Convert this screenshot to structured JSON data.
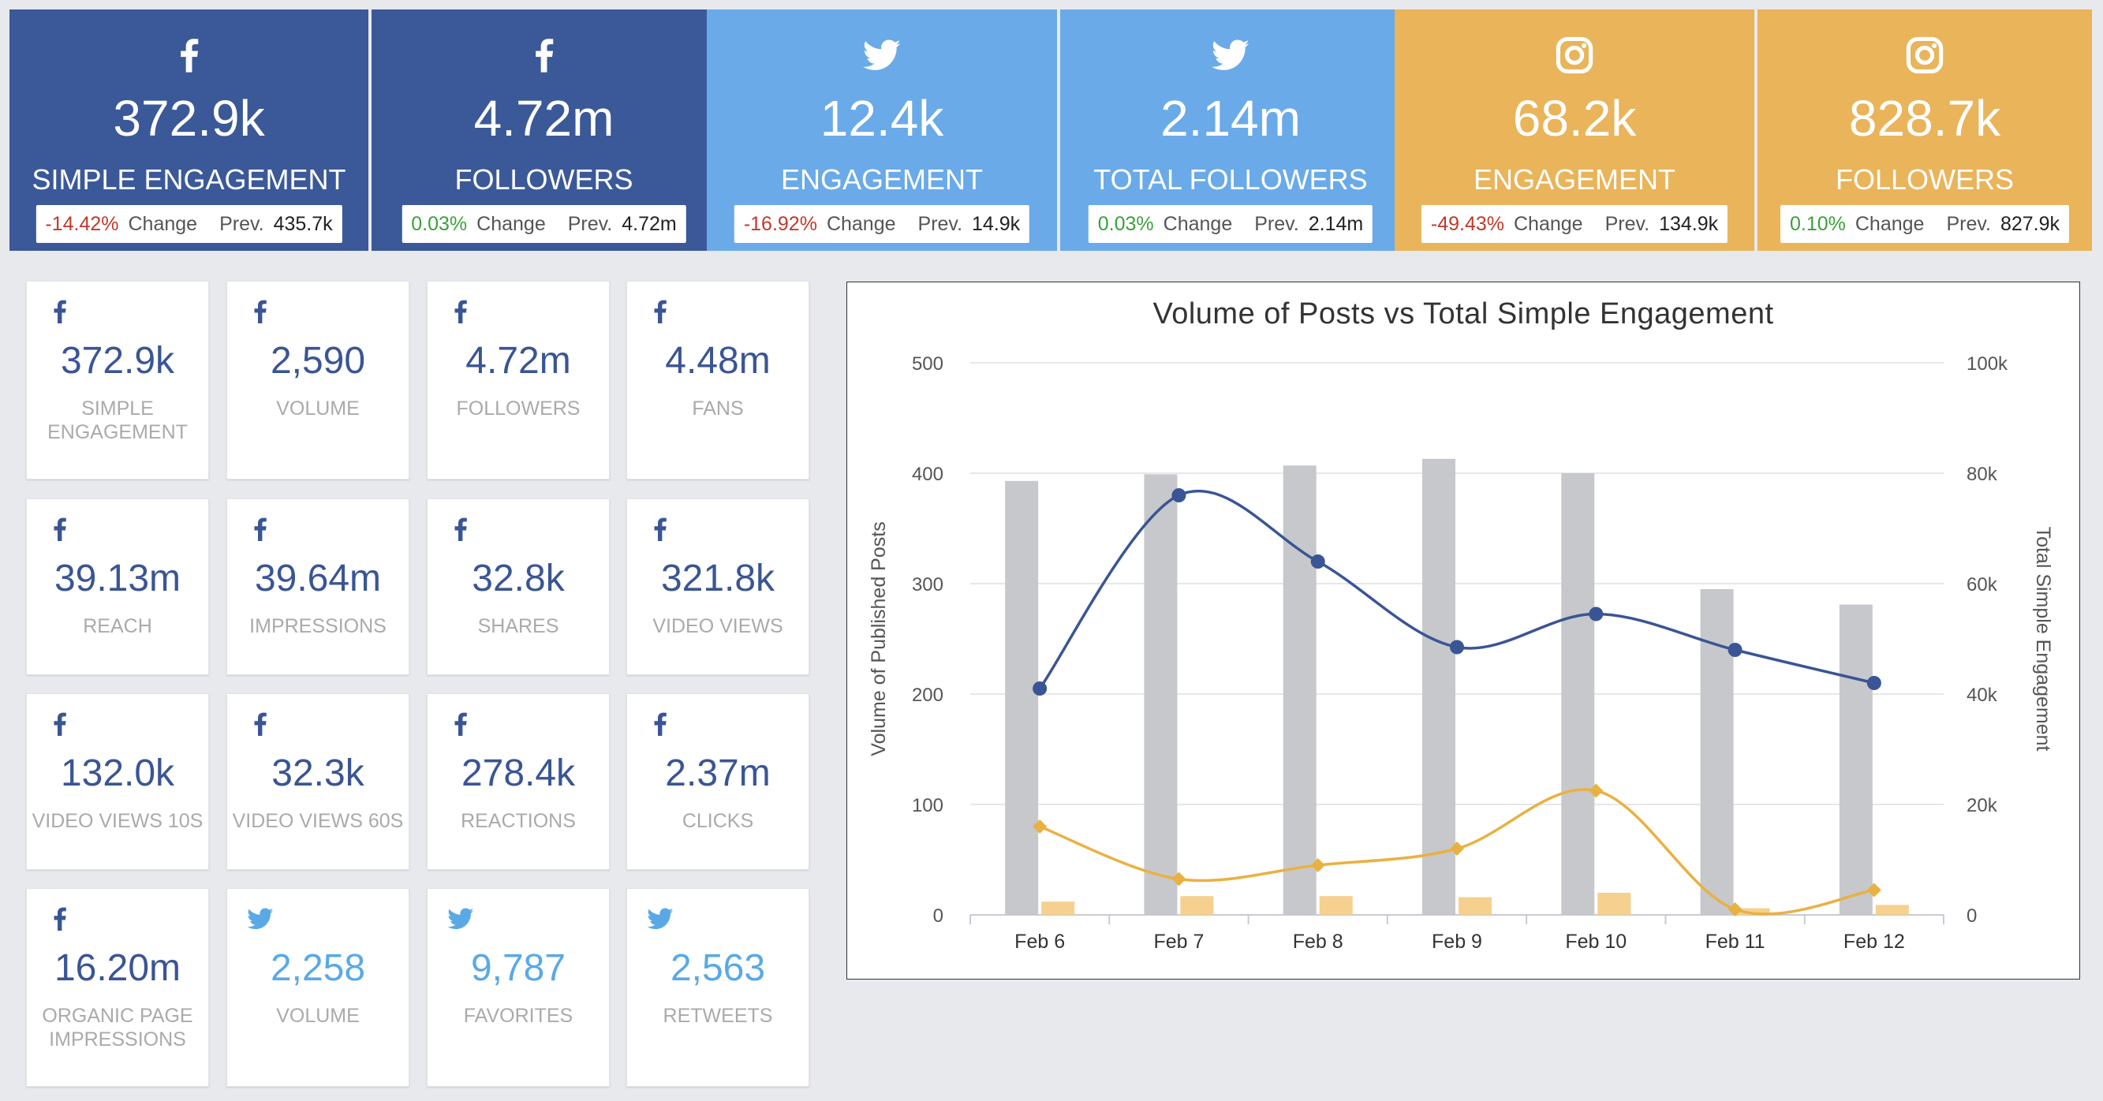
{
  "colors": {
    "facebook": "#3b5998",
    "twitter": "#6aaae8",
    "instagram": "#e9b45a",
    "negative": "#c0392b",
    "positive": "#3aa13a",
    "bar_primary": "#c7c8cc",
    "bar_secondary": "#f5d08f",
    "line_primary": "#3a5595",
    "line_secondary": "#e9b142"
  },
  "summary_cards": [
    {
      "icon": "facebook-icon",
      "value": "372.9k",
      "label": "SIMPLE ENGAGEMENT",
      "change": "-14.42%",
      "change_label": "Change",
      "prev_label": "Prev.",
      "prev": "435.7k"
    },
    {
      "icon": "facebook-icon",
      "value": "4.72m",
      "label": "FOLLOWERS",
      "change": "0.03%",
      "change_label": "Change",
      "prev_label": "Prev.",
      "prev": "4.72m"
    },
    {
      "icon": "twitter-icon",
      "value": "12.4k",
      "label": "ENGAGEMENT",
      "change": "-16.92%",
      "change_label": "Change",
      "prev_label": "Prev.",
      "prev": "14.9k"
    },
    {
      "icon": "twitter-icon",
      "value": "2.14m",
      "label": "TOTAL FOLLOWERS",
      "change": "0.03%",
      "change_label": "Change",
      "prev_label": "Prev.",
      "prev": "2.14m"
    },
    {
      "icon": "instagram-icon",
      "value": "68.2k",
      "label": "ENGAGEMENT",
      "change": "-49.43%",
      "change_label": "Change",
      "prev_label": "Prev.",
      "prev": "134.9k"
    },
    {
      "icon": "instagram-icon",
      "value": "828.7k",
      "label": "FOLLOWERS",
      "change": "0.10%",
      "change_label": "Change",
      "prev_label": "Prev.",
      "prev": "827.9k"
    }
  ],
  "metric_tiles": [
    {
      "icon": "facebook-icon",
      "value": "372.9k",
      "label": "SIMPLE ENGAGEMENT"
    },
    {
      "icon": "facebook-icon",
      "value": "2,590",
      "label": "VOLUME"
    },
    {
      "icon": "facebook-icon",
      "value": "4.72m",
      "label": "FOLLOWERS"
    },
    {
      "icon": "facebook-icon",
      "value": "4.48m",
      "label": "FANS"
    },
    {
      "icon": "facebook-icon",
      "value": "39.13m",
      "label": "REACH"
    },
    {
      "icon": "facebook-icon",
      "value": "39.64m",
      "label": "IMPRESSIONS"
    },
    {
      "icon": "facebook-icon",
      "value": "32.8k",
      "label": "SHARES"
    },
    {
      "icon": "facebook-icon",
      "value": "321.8k",
      "label": "VIDEO VIEWS"
    },
    {
      "icon": "facebook-icon",
      "value": "132.0k",
      "label": "VIDEO VIEWS 10S"
    },
    {
      "icon": "facebook-icon",
      "value": "32.3k",
      "label": "VIDEO VIEWS 60S"
    },
    {
      "icon": "facebook-icon",
      "value": "278.4k",
      "label": "REACTIONS"
    },
    {
      "icon": "facebook-icon",
      "value": "2.37m",
      "label": "CLICKS"
    },
    {
      "icon": "facebook-icon",
      "value": "16.20m",
      "label": "ORGANIC PAGE IMPRESSIONS"
    },
    {
      "icon": "twitter-icon",
      "value": "2,258",
      "label": "VOLUME"
    },
    {
      "icon": "twitter-icon",
      "value": "9,787",
      "label": "FAVORITES"
    },
    {
      "icon": "twitter-icon",
      "value": "2,563",
      "label": "RETWEETS"
    }
  ],
  "chart_data": {
    "type": "bar",
    "title": "Volume of Posts vs Total Simple Engagement",
    "xlabel": "",
    "ylabel": "Volume of Published Posts",
    "y2label": "Total Simple Engagement",
    "categories": [
      "Feb 6",
      "Feb 7",
      "Feb 8",
      "Feb 9",
      "Feb 10",
      "Feb 11",
      "Feb 12"
    ],
    "ylim": [
      0,
      500
    ],
    "y2lim": [
      0,
      100000
    ],
    "yticks": [
      "0",
      "100",
      "200",
      "300",
      "400",
      "500"
    ],
    "y2ticks": [
      "0",
      "20k",
      "40k",
      "60k",
      "80k",
      "100k"
    ],
    "grid": true,
    "series": [
      {
        "type": "bar",
        "axis": "left",
        "color": "#c7c8cc",
        "values": [
          393,
          399,
          407,
          413,
          400,
          295,
          281
        ]
      },
      {
        "type": "bar",
        "axis": "left",
        "color": "#f5d08f",
        "values": [
          12,
          17,
          17,
          16,
          20,
          6,
          9
        ]
      },
      {
        "type": "line",
        "axis": "right",
        "marker": "circle",
        "color": "#3a5595",
        "values": [
          41000,
          76000,
          64000,
          48500,
          54500,
          48000,
          42000
        ]
      },
      {
        "type": "line",
        "axis": "right",
        "marker": "diamond",
        "color": "#e9b142",
        "values": [
          16000,
          6500,
          9000,
          12000,
          22500,
          1000,
          4500
        ]
      }
    ]
  }
}
